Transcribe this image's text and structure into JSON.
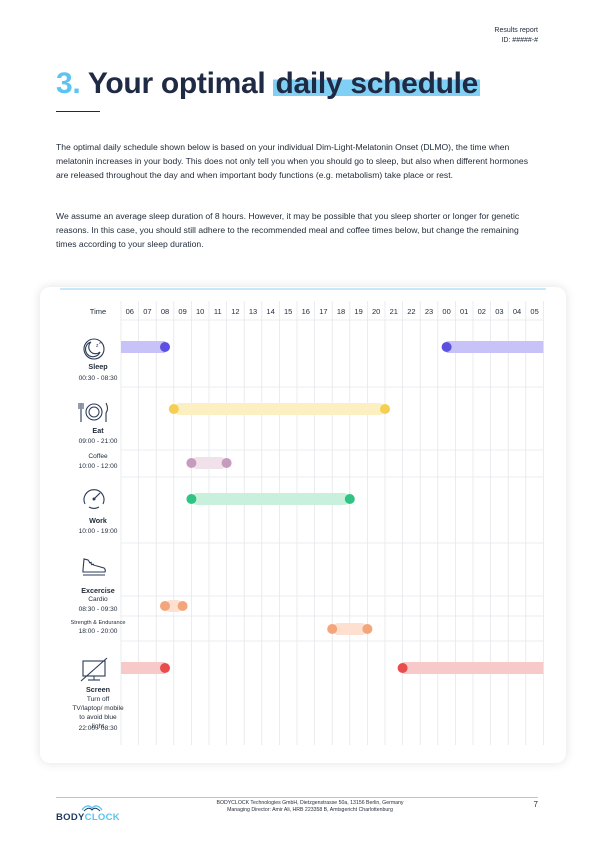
{
  "header": {
    "report_title": "Results report",
    "report_id": "ID: #####-#"
  },
  "title": {
    "number": "3.",
    "text": "Your optimal",
    "highlight": "daily schedule"
  },
  "paragraphs": [
    "The optimal daily schedule shown below is based on your individual Dim-Light-Melatonin Onset (DLMO), the time when melatonin increases in your body. This does not only tell you when you should go to sleep, but also when different hormones are released throughout the day and when important body functions (e.g. metabolism) take place or rest.",
    "We assume an average sleep duration of 8 hours. However, it may be possible that you sleep shorter or longer for genetic reasons. In this case, you should still adhere to the recommended meal and coffee times below, but change the remaining times according to your sleep duration."
  ],
  "chart_data": {
    "type": "table",
    "time_label": "Time",
    "hours": [
      "06",
      "07",
      "08",
      "09",
      "10",
      "11",
      "12",
      "13",
      "14",
      "15",
      "16",
      "17",
      "18",
      "19",
      "20",
      "21",
      "22",
      "23",
      "00",
      "01",
      "02",
      "03",
      "04",
      "05"
    ],
    "rows": [
      {
        "name": "Sleep",
        "time": "00:30 - 08:30",
        "icon": "sleep-icon",
        "color": "#c7c2f7",
        "dot": "#5b50e0",
        "start": 0.5,
        "end": 8.5
      },
      {
        "name": "Eat",
        "time": "09:00 - 21:00",
        "icon": "plate-cutlery-icon",
        "color": "#fcefc2",
        "dot": "#f5cf52",
        "start": 9,
        "end": 21
      },
      {
        "name": "Coffee",
        "time": "10:00 - 12:00",
        "icon": "",
        "color": "#f1e1ea",
        "dot": "#c79bbd",
        "start": 10,
        "end": 12
      },
      {
        "name": "Work",
        "time": "10:00 - 19:00",
        "icon": "speedometer-icon",
        "color": "#c9efdd",
        "dot": "#2fc483",
        "start": 10,
        "end": 19
      },
      {
        "name": "Excercise",
        "time": "",
        "icon": "sneaker-icon",
        "color": "",
        "dot": "",
        "start": null,
        "end": null
      },
      {
        "name": "Cardio",
        "time": "08:30 - 09:30",
        "icon": "",
        "color": "#fde0d0",
        "dot": "#f4a57b",
        "start": 8.5,
        "end": 9.5
      },
      {
        "name": "Strength & Endurance",
        "time": "18:00 - 20:00",
        "icon": "",
        "color": "#fde0d0",
        "dot": "#f4a57b",
        "start": 18,
        "end": 20
      },
      {
        "name": "Screen",
        "note": "Turn off TV/laptop/ mobile to avoid blue light",
        "time": "22:00 - 08:30",
        "icon": "screen-off-icon",
        "color": "#f8c9c9",
        "dot": "#e84c4c",
        "start": 22,
        "end": 8.5
      }
    ]
  },
  "footer": {
    "logo_part1": "BODY",
    "logo_part2": "CLOCK",
    "company_line1": "BODYCLOCK Technologies GmbH, Dietzgenstrasse 50a, 13156 Berlin, Germany",
    "company_line2": "Managing Director: Amir Ali, HRB 223358 B, Amtsgericht Charlottenburg",
    "page_number": "7"
  },
  "colors": {
    "accent": "#5bc4f0",
    "navy": "#1f2a44"
  }
}
